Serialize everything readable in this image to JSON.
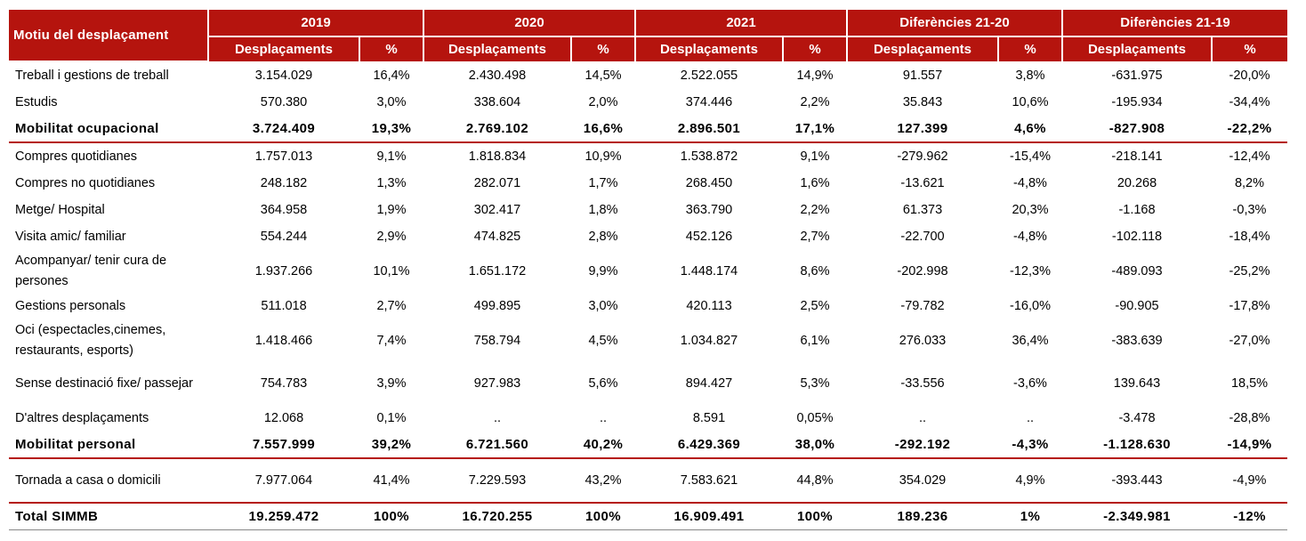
{
  "header": {
    "motiu": "Motiu del desplaçament",
    "groups": [
      "2019",
      "2020",
      "2021",
      "Diferències 21-20",
      "Diferències 21-19"
    ],
    "sub_desp": "Desplaçaments",
    "sub_pct": "%"
  },
  "rows": [
    {
      "label": "Treball i gestions de treball",
      "cells": [
        "3.154.029",
        "16,4%",
        "2.430.498",
        "14,5%",
        "2.522.055",
        "14,9%",
        "91.557",
        "3,8%",
        "-631.975",
        "-20,0%"
      ]
    },
    {
      "label": "Estudis",
      "cells": [
        "570.380",
        "3,0%",
        "338.604",
        "2,0%",
        "374.446",
        "2,2%",
        "35.843",
        "10,6%",
        "-195.934",
        "-34,4%"
      ]
    },
    {
      "label": "Mobilitat ocupacional",
      "cells": [
        "3.724.409",
        "19,3%",
        "2.769.102",
        "16,6%",
        "2.896.501",
        "17,1%",
        "127.399",
        "4,6%",
        "-827.908",
        "-22,2%"
      ]
    },
    {
      "label": "Compres quotidianes",
      "cells": [
        "1.757.013",
        "9,1%",
        "1.818.834",
        "10,9%",
        "1.538.872",
        "9,1%",
        "-279.962",
        "-15,4%",
        "-218.141",
        "-12,4%"
      ]
    },
    {
      "label": "Compres no quotidianes",
      "cells": [
        "248.182",
        "1,3%",
        "282.071",
        "1,7%",
        "268.450",
        "1,6%",
        "-13.621",
        "-4,8%",
        "20.268",
        "8,2%"
      ]
    },
    {
      "label": "Metge/ Hospital",
      "cells": [
        "364.958",
        "1,9%",
        "302.417",
        "1,8%",
        "363.790",
        "2,2%",
        "61.373",
        "20,3%",
        "-1.168",
        "-0,3%"
      ]
    },
    {
      "label": "Visita amic/ familiar",
      "cells": [
        "554.244",
        "2,9%",
        "474.825",
        "2,8%",
        "452.126",
        "2,7%",
        "-22.700",
        "-4,8%",
        "-102.118",
        "-18,4%"
      ]
    },
    {
      "label": "Acompanyar/ tenir cura de persones",
      "cells": [
        "1.937.266",
        "10,1%",
        "1.651.172",
        "9,9%",
        "1.448.174",
        "8,6%",
        "-202.998",
        "-12,3%",
        "-489.093",
        "-25,2%"
      ]
    },
    {
      "label": "Gestions personals",
      "cells": [
        "511.018",
        "2,7%",
        "499.895",
        "3,0%",
        "420.113",
        "2,5%",
        "-79.782",
        "-16,0%",
        "-90.905",
        "-17,8%"
      ]
    },
    {
      "label": "Oci (espectacles,cinemes, restaurants, esports)",
      "cells": [
        "1.418.466",
        "7,4%",
        "758.794",
        "4,5%",
        "1.034.827",
        "6,1%",
        "276.033",
        "36,4%",
        "-383.639",
        "-27,0%"
      ]
    },
    {
      "label": "Sense destinació fixe/ passejar",
      "cells": [
        "754.783",
        "3,9%",
        "927.983",
        "5,6%",
        "894.427",
        "5,3%",
        "-33.556",
        "-3,6%",
        "139.643",
        "18,5%"
      ]
    },
    {
      "label": "D'altres desplaçaments",
      "cells": [
        "12.068",
        "0,1%",
        "..",
        "..",
        "8.591",
        "0,05%",
        "..",
        "..",
        "-3.478",
        "-28,8%"
      ]
    },
    {
      "label": "Mobilitat personal",
      "cells": [
        "7.557.999",
        "39,2%",
        "6.721.560",
        "40,2%",
        "6.429.369",
        "38,0%",
        "-292.192",
        "-4,3%",
        "-1.128.630",
        "-14,9%"
      ]
    },
    {
      "label": "Tornada a casa o domicili",
      "cells": [
        "7.977.064",
        "41,4%",
        "7.229.593",
        "43,2%",
        "7.583.621",
        "44,8%",
        "354.029",
        "4,9%",
        "-393.443",
        "-4,9%"
      ]
    },
    {
      "label": "Total SIMMB",
      "cells": [
        "19.259.472",
        "100%",
        "16.720.255",
        "100%",
        "16.909.491",
        "100%",
        "189.236",
        "1%",
        "-2.349.981",
        "-12%"
      ]
    }
  ]
}
